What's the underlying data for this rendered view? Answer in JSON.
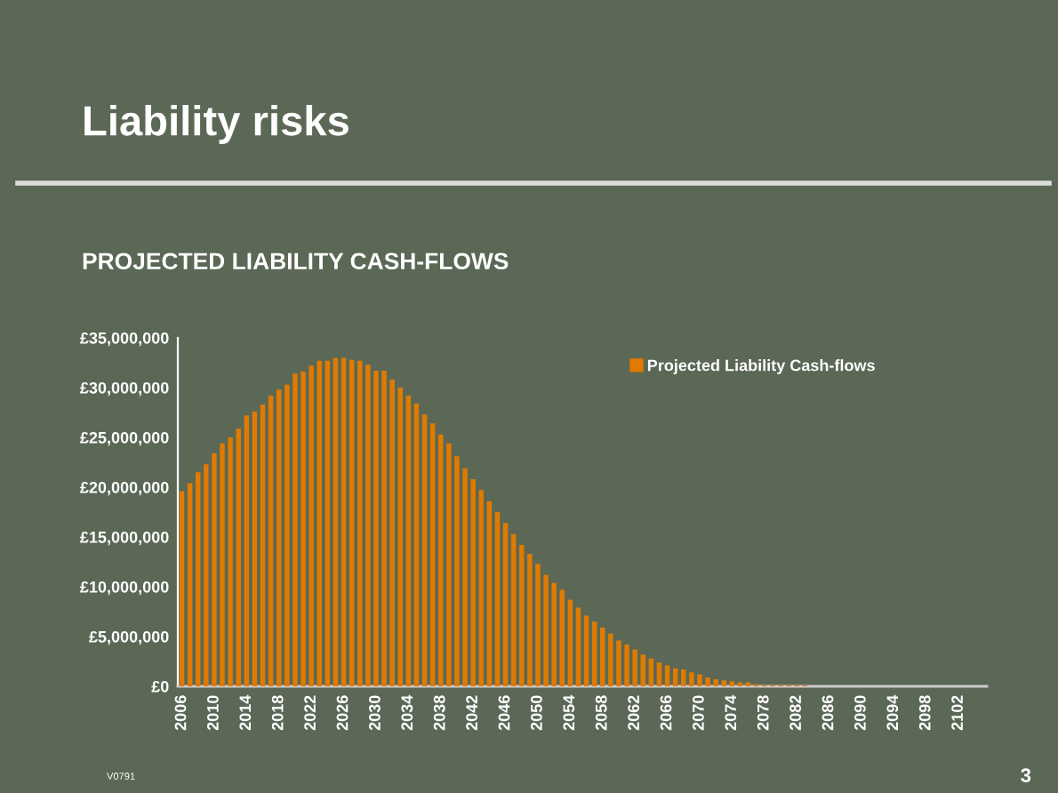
{
  "chart_data": {
    "type": "bar",
    "title": "Liability risks",
    "subtitle": "PROJECTED LIABILITY CASH-FLOWS",
    "annotations": [
      "V0791",
      "3"
    ],
    "categories": [
      "2006",
      null,
      null,
      null,
      "2010",
      null,
      null,
      null,
      "2014",
      null,
      null,
      null,
      "2018",
      null,
      null,
      null,
      "2022",
      null,
      null,
      null,
      "2026",
      null,
      null,
      null,
      "2030",
      null,
      null,
      null,
      "2034",
      null,
      null,
      null,
      "2038",
      null,
      null,
      null,
      "2042",
      null,
      null,
      null,
      "2046",
      null,
      null,
      null,
      "2050",
      null,
      null,
      null,
      "2054",
      null,
      null,
      null,
      "2058",
      null,
      null,
      null,
      "2062",
      null,
      null,
      null,
      "2066",
      null,
      null,
      null,
      "2070",
      null,
      null,
      null,
      "2074",
      null,
      null,
      null,
      "2078",
      null,
      null,
      null,
      "2082",
      null,
      null,
      null,
      "2086",
      null,
      null,
      null,
      "2090",
      null,
      null,
      null,
      "2094",
      null,
      null,
      null,
      "2098",
      null,
      null,
      null,
      "2102",
      null,
      null,
      null
    ],
    "series": [
      {
        "name": "Projected Liability Cash-flows",
        "color": "#e07b00",
        "values": [
          19600000,
          20400000,
          21500000,
          22300000,
          23400000,
          24400000,
          25000000,
          25900000,
          27200000,
          27600000,
          28300000,
          29200000,
          29800000,
          30300000,
          31400000,
          31600000,
          32200000,
          32700000,
          32700000,
          33000000,
          33000000,
          32800000,
          32700000,
          32300000,
          31700000,
          31700000,
          30800000,
          30000000,
          29200000,
          28400000,
          27300000,
          26400000,
          25300000,
          24400000,
          23100000,
          21900000,
          20800000,
          19700000,
          18600000,
          17500000,
          16400000,
          15300000,
          14200000,
          13300000,
          12300000,
          11200000,
          10400000,
          9700000,
          8700000,
          7900000,
          7100000,
          6500000,
          5900000,
          5300000,
          4600000,
          4200000,
          3700000,
          3200000,
          2800000,
          2400000,
          2100000,
          1800000,
          1700000,
          1400000,
          1200000,
          900000,
          700000,
          600000,
          500000,
          400000,
          400000,
          200000,
          100000,
          100000,
          100000,
          100000,
          100000,
          100000,
          0,
          0,
          0,
          0,
          0,
          0,
          0,
          0,
          0,
          0,
          0,
          0,
          0,
          0,
          0,
          0,
          0,
          0,
          0,
          0,
          0,
          0
        ]
      }
    ],
    "ylim": [
      0,
      35000000
    ],
    "yticks": [
      {
        "value": 0,
        "label": "£0"
      },
      {
        "value": 5000000,
        "label": "£5,000,000"
      },
      {
        "value": 10000000,
        "label": "£10,000,000"
      },
      {
        "value": 15000000,
        "label": "£15,000,000"
      },
      {
        "value": 20000000,
        "label": "£20,000,000"
      },
      {
        "value": 25000000,
        "label": "£25,000,000"
      },
      {
        "value": 30000000,
        "label": "£30,000,000"
      },
      {
        "value": 35000000,
        "label": "£35,000,000"
      }
    ],
    "grid": false,
    "legend": "top right"
  }
}
